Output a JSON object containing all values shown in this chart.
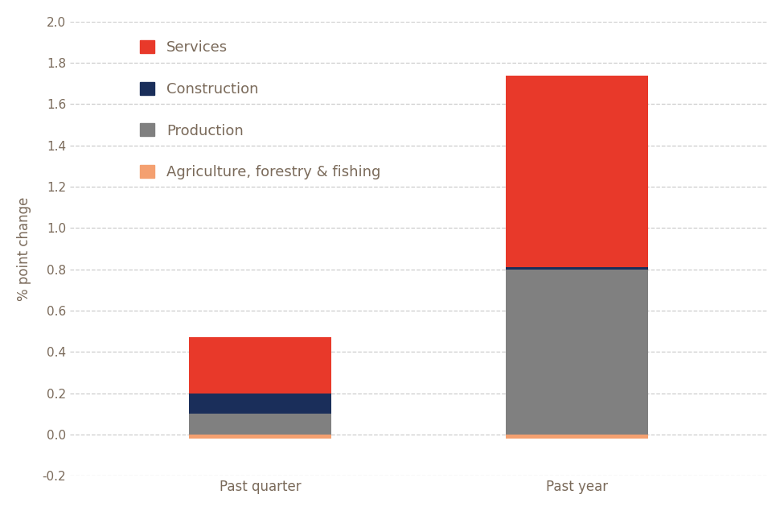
{
  "categories": [
    "Past quarter",
    "Past year"
  ],
  "series": {
    "Agriculture, forestry & fishing": [
      -0.02,
      -0.02
    ],
    "Production": [
      0.1,
      0.8
    ],
    "Construction": [
      0.1,
      0.01
    ],
    "Services": [
      0.27,
      0.93
    ]
  },
  "colors": {
    "Services": "#e8392a",
    "Construction": "#1a2e5a",
    "Production": "#808080",
    "Agriculture, forestry & fishing": "#f4a070"
  },
  "ylabel": "% point change",
  "ylim": [
    -0.2,
    2.0
  ],
  "yticks": [
    -0.2,
    0.0,
    0.2,
    0.4,
    0.6,
    0.8,
    1.0,
    1.2,
    1.4,
    1.6,
    1.8,
    2.0
  ],
  "background_color": "#ffffff",
  "grid_color": "#cccccc",
  "text_color": "#7a6a5a",
  "bar_width": 0.45,
  "legend_order": [
    "Services",
    "Construction",
    "Production",
    "Agriculture, forestry & fishing"
  ]
}
